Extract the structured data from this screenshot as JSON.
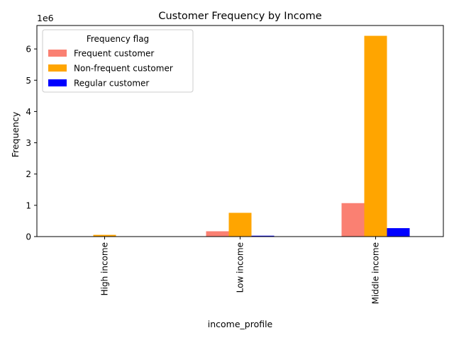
{
  "chart_data": {
    "type": "bar",
    "title": "Customer Frequency by Income",
    "xlabel": "income_profile",
    "ylabel": "Frequency",
    "y_scale_label": "1e6",
    "y_scale": 1000000,
    "categories": [
      "High income",
      "Low income",
      "Middle income"
    ],
    "series": [
      {
        "name": "Frequent customer",
        "color": "#fa8072",
        "values": [
          5000,
          170000,
          1070000
        ]
      },
      {
        "name": "Non-frequent customer",
        "color": "#ffa500",
        "values": [
          55000,
          760000,
          6420000
        ]
      },
      {
        "name": "Regular customer",
        "color": "#0000ff",
        "values": [
          1000,
          28000,
          270000
        ]
      }
    ],
    "ylim": [
      0,
      6750000
    ],
    "yticks": [
      0,
      1,
      2,
      3,
      4,
      5,
      6
    ],
    "legend": {
      "title": "Frequency flag",
      "placement": "upper-left"
    },
    "grid": false
  }
}
